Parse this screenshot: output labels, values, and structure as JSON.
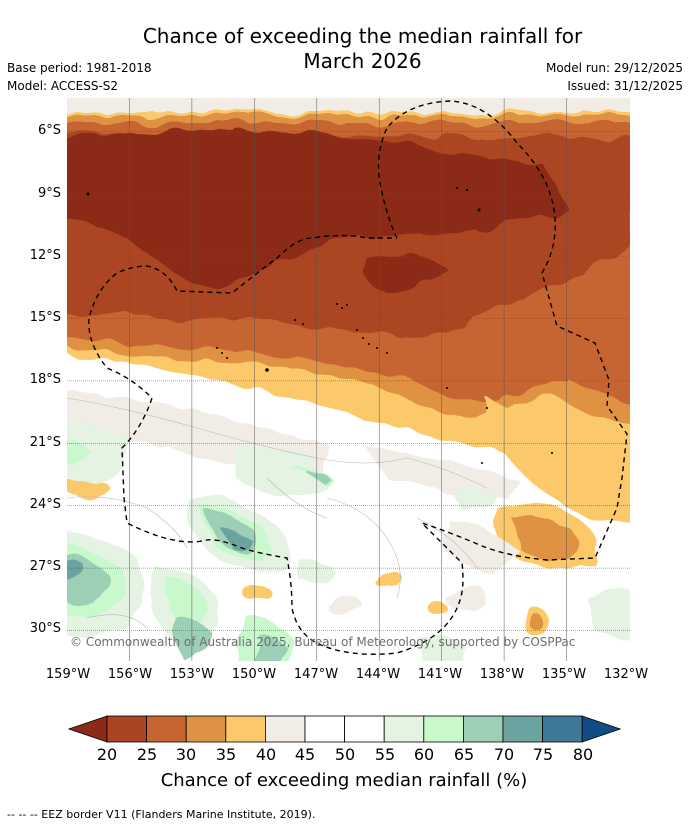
{
  "title_line1": "Chance of exceeding the median rainfall for",
  "title_line2": "March 2026",
  "base_period": "Base period: 1981-2018",
  "model": "Model: ACCESS-S2",
  "model_run": "Model run: 29/12/2025",
  "issued": "Issued: 31/12/2025",
  "copyright": "© Commonwealth of Australia 2025, Bureau of Meteorology, supported by COSPPac",
  "lat_labels": [
    "6°S",
    "9°S",
    "12°S",
    "15°S",
    "18°S",
    "21°S",
    "24°S",
    "27°S",
    "30°S"
  ],
  "lon_labels": [
    "159°W",
    "156°W",
    "153°W",
    "150°W",
    "147°W",
    "144°W",
    "141°W",
    "138°W",
    "135°W",
    "132°W"
  ],
  "colorbar": {
    "title": "Chance of exceeding median rainfall (%)",
    "ticks": [
      "20",
      "25",
      "30",
      "35",
      "40",
      "45",
      "50",
      "55",
      "60",
      "65",
      "70",
      "75",
      "80"
    ],
    "colors": [
      "#8b2a16",
      "#ab4422",
      "#c76530",
      "#de9243",
      "#fcc96a",
      "#f1ece6",
      "#ffffff",
      "#ffffff",
      "#e5f3e3",
      "#c8f8cc",
      "#9dcfb6",
      "#6ba3a0",
      "#3f7896",
      "#124c86"
    ]
  },
  "legend_text": "--  --  -- EEZ border V11 (Flanders Marine Institute, 2019)."
}
